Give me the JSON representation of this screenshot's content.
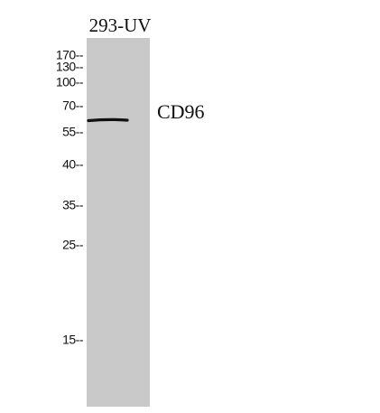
{
  "lane_label": "293-UV",
  "band_label": "CD96",
  "markers": [
    "170--",
    "130--",
    "100--",
    "70--",
    "55--",
    "40--",
    "35--",
    "25--",
    "15--"
  ]
}
